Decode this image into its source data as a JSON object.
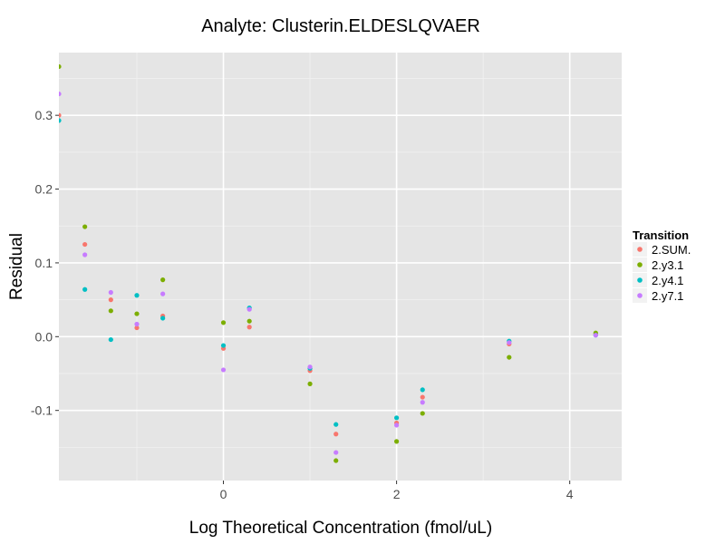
{
  "chart_data": {
    "type": "scatter",
    "title": "Analyte: Clusterin.ELDESLQVAER",
    "xlabel": "Log Theoretical Concentration (fmol/uL)",
    "ylabel": "Residual",
    "xlim": [
      -1.9,
      4.6
    ],
    "ylim": [
      -0.195,
      0.385
    ],
    "x_ticks": [
      0,
      2,
      4
    ],
    "x_tick_labels": [
      "0",
      "2",
      "4"
    ],
    "y_ticks": [
      -0.1,
      0.0,
      0.1,
      0.2,
      0.3
    ],
    "y_tick_labels": [
      "-0.1",
      "0.0",
      "0.1",
      "0.2",
      "0.3"
    ],
    "background": "#e5e5e5",
    "grid": true,
    "legend": {
      "title": "Transition",
      "position": "right"
    },
    "series": [
      {
        "name": "2.SUM.",
        "color": "#f8766d",
        "points": [
          {
            "x": -1.9,
            "y": 0.3
          },
          {
            "x": -1.6,
            "y": 0.125
          },
          {
            "x": -1.3,
            "y": 0.05
          },
          {
            "x": -1.0,
            "y": 0.012
          },
          {
            "x": -0.7,
            "y": 0.028
          },
          {
            "x": 0.0,
            "y": -0.016
          },
          {
            "x": 0.3,
            "y": 0.013
          },
          {
            "x": 1.0,
            "y": -0.046
          },
          {
            "x": 1.3,
            "y": -0.132
          },
          {
            "x": 2.0,
            "y": -0.117
          },
          {
            "x": 2.3,
            "y": -0.082
          },
          {
            "x": 3.3,
            "y": -0.01
          },
          {
            "x": 4.3,
            "y": 0.003
          }
        ]
      },
      {
        "name": "2.y3.1",
        "color": "#7cae00",
        "points": [
          {
            "x": -1.9,
            "y": 0.366
          },
          {
            "x": -1.6,
            "y": 0.149
          },
          {
            "x": -1.3,
            "y": 0.035
          },
          {
            "x": -1.0,
            "y": 0.031
          },
          {
            "x": -0.7,
            "y": 0.077
          },
          {
            "x": 0.0,
            "y": 0.019
          },
          {
            "x": 0.3,
            "y": 0.021
          },
          {
            "x": 1.0,
            "y": -0.064
          },
          {
            "x": 1.3,
            "y": -0.168
          },
          {
            "x": 2.0,
            "y": -0.142
          },
          {
            "x": 2.3,
            "y": -0.104
          },
          {
            "x": 3.3,
            "y": -0.028
          },
          {
            "x": 4.3,
            "y": 0.005
          }
        ]
      },
      {
        "name": "2.y4.1",
        "color": "#00bfc4",
        "points": [
          {
            "x": -1.9,
            "y": 0.293
          },
          {
            "x": -1.6,
            "y": 0.064
          },
          {
            "x": -1.3,
            "y": -0.004
          },
          {
            "x": -1.0,
            "y": 0.056
          },
          {
            "x": -0.7,
            "y": 0.025
          },
          {
            "x": 0.0,
            "y": -0.012
          },
          {
            "x": 0.3,
            "y": 0.039
          },
          {
            "x": 1.0,
            "y": -0.043
          },
          {
            "x": 1.3,
            "y": -0.119
          },
          {
            "x": 2.0,
            "y": -0.11
          },
          {
            "x": 2.3,
            "y": -0.072
          },
          {
            "x": 3.3,
            "y": -0.006
          },
          {
            "x": 4.3,
            "y": 0.002
          }
        ]
      },
      {
        "name": "2.y7.1",
        "color": "#c77cff",
        "points": [
          {
            "x": -1.9,
            "y": 0.329
          },
          {
            "x": -1.6,
            "y": 0.111
          },
          {
            "x": -1.3,
            "y": 0.06
          },
          {
            "x": -1.0,
            "y": 0.017
          },
          {
            "x": -0.7,
            "y": 0.058
          },
          {
            "x": 0.0,
            "y": -0.045
          },
          {
            "x": 0.3,
            "y": 0.037
          },
          {
            "x": 1.0,
            "y": -0.041
          },
          {
            "x": 1.3,
            "y": -0.157
          },
          {
            "x": 2.0,
            "y": -0.12
          },
          {
            "x": 2.3,
            "y": -0.089
          },
          {
            "x": 3.3,
            "y": -0.008
          },
          {
            "x": 4.3,
            "y": 0.002
          }
        ]
      }
    ]
  }
}
